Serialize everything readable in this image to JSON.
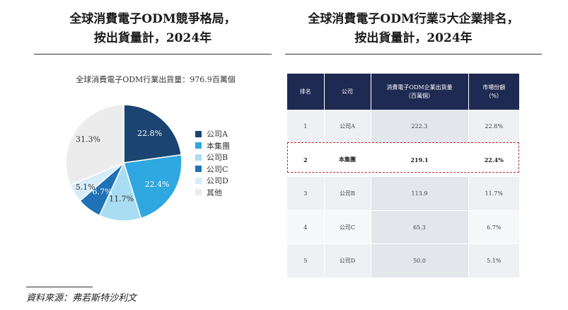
{
  "left_title": {
    "line1": "全球消費電子ODM競爭格局，",
    "line2": "按出貨量計，2024年"
  },
  "right_title": {
    "line1": "全球消費電子ODM行業5大企業排名，",
    "line2": "按出貨量計，2024年"
  },
  "pie_subtitle": "全球消費電子ODM行業出貨量：976.9百萬個",
  "chart_data": {
    "type": "pie",
    "title": "全球消費電子ODM行業出貨量：976.9百萬個",
    "unit": "%",
    "slices": [
      {
        "name": "公司A",
        "value": 22.8,
        "label": "22.8%",
        "color": "#1b4470",
        "label_color": "#ffffff"
      },
      {
        "name": "本集團",
        "value": 22.4,
        "label": "22.4%",
        "color": "#2fa7e0",
        "label_color": "#ffffff"
      },
      {
        "name": "公司B",
        "value": 11.7,
        "label": "11.7%",
        "color": "#a8ddf3",
        "label_color": "#333333"
      },
      {
        "name": "公司C",
        "value": 6.7,
        "label": "6.7%",
        "color": "#1f72b6",
        "label_color": "#ffffff"
      },
      {
        "name": "公司D",
        "value": 5.1,
        "label": "5.1%",
        "color": "#d6ecf9",
        "label_color": "#333333"
      },
      {
        "name": "其他",
        "value": 31.3,
        "label": "31.3%",
        "color": "#ececec",
        "label_color": "#333333"
      }
    ],
    "legend_position": "right"
  },
  "table": {
    "headers": [
      "排名",
      "公司",
      "消費電子ODM企業出貨量\n（百萬個）",
      "市場份額\n（%）"
    ],
    "rows": [
      {
        "rank": "1",
        "company": "公司A",
        "shipment": "222.3",
        "share": "22.8%",
        "highlight": false
      },
      {
        "rank": "2",
        "company": "本集團",
        "shipment": "219.1",
        "share": "22.4%",
        "highlight": true
      },
      {
        "rank": "3",
        "company": "公司B",
        "shipment": "113.9",
        "share": "11.7%",
        "highlight": false
      },
      {
        "rank": "4",
        "company": "公司C",
        "shipment": "65.3",
        "share": "6.7%",
        "highlight": false
      },
      {
        "rank": "5",
        "company": "公司D",
        "shipment": "50.0",
        "share": "5.1%",
        "highlight": false
      }
    ],
    "highlight_color": "#c0283a"
  },
  "source": "資料來源：弗若斯特沙利文"
}
